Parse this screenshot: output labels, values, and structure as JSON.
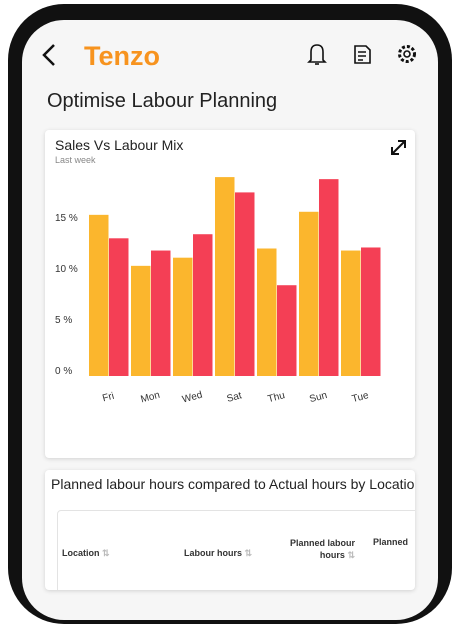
{
  "header": {
    "logo": "Tenzo",
    "title": "Optimise Labour Planning"
  },
  "chart_data": {
    "type": "bar",
    "title": "Sales Vs Labour Mix",
    "subtitle": "Last week",
    "categories": [
      "Fri",
      "Mon",
      "Wed",
      "Sat",
      "Thu",
      "Sun",
      "Tue"
    ],
    "series": [
      {
        "color": "#fbb62d",
        "values": [
          15.8,
          10.8,
          11.6,
          19.5,
          12.5,
          16.1,
          12.3
        ]
      },
      {
        "color": "#f43f55",
        "values": [
          13.5,
          12.3,
          13.9,
          18.0,
          8.9,
          19.3,
          12.6
        ]
      }
    ],
    "ylim": [
      0,
      20
    ],
    "yticks": [
      {
        "value": 0,
        "label": "0 %"
      },
      {
        "value": 5,
        "label": "5 %"
      },
      {
        "value": 10,
        "label": "10 %"
      },
      {
        "value": 15,
        "label": "15 %"
      }
    ]
  },
  "table": {
    "title": "Planned labour hours compared to Actual hours by Location",
    "columns": [
      "Location",
      "Labour hours",
      "Planned labour hours",
      "Planned"
    ]
  }
}
